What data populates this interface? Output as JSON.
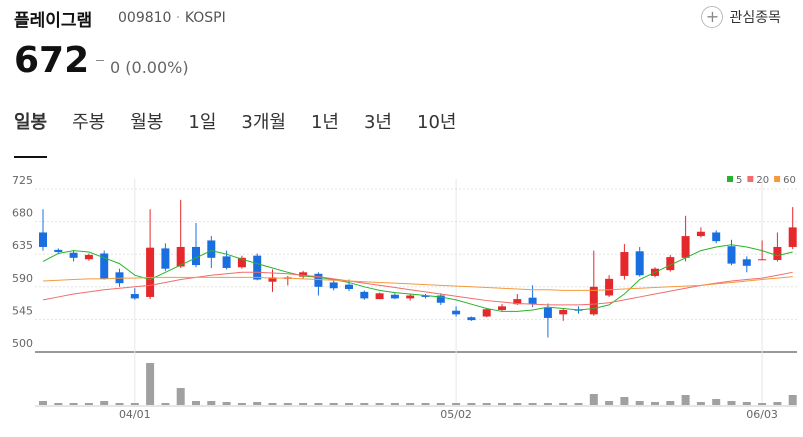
{
  "header": {
    "name": "플레이그램",
    "code": "009810",
    "separator": "·",
    "market": "KOSPI",
    "button": "관심종목"
  },
  "price": {
    "value": "672",
    "change": "0 (0.00%)"
  },
  "tabs": [
    "일봉",
    "주봉",
    "월봉",
    "1일",
    "3개월",
    "1년",
    "3년",
    "10년"
  ],
  "selected_tab": 0,
  "chart_data": {
    "type": "candlestick",
    "categories": [
      null,
      null,
      null,
      null,
      null,
      null,
      "04/01",
      null,
      null,
      null,
      null,
      null,
      null,
      null,
      null,
      null,
      null,
      null,
      null,
      null,
      null,
      null,
      null,
      null,
      null,
      null,
      null,
      "05/02",
      null,
      null,
      null,
      null,
      null,
      null,
      null,
      null,
      null,
      null,
      null,
      null,
      null,
      null,
      null,
      null,
      null,
      null,
      null,
      "06/03",
      null,
      null
    ],
    "open": [
      665,
      641,
      637,
      628,
      636,
      610,
      580,
      576,
      643,
      618,
      645,
      654,
      632,
      617,
      633,
      597,
      601,
      604,
      608,
      596,
      593,
      583,
      573,
      579,
      574,
      578,
      578,
      557,
      548,
      549,
      558,
      566,
      575,
      561,
      552,
      559,
      552,
      578,
      605,
      639,
      605,
      613,
      630,
      660,
      665,
      646,
      628,
      627,
      627,
      645
    ],
    "high": [
      697,
      643,
      640,
      636,
      640,
      615,
      588,
      697,
      650,
      710,
      678,
      660,
      640,
      633,
      636,
      614,
      605,
      612,
      610,
      600,
      600,
      585,
      582,
      581,
      580,
      580,
      581,
      563,
      549,
      560,
      566,
      580,
      592,
      567,
      560,
      563,
      640,
      606,
      649,
      645,
      617,
      634,
      688,
      672,
      668,
      655,
      632,
      654,
      665,
      700
    ],
    "low": [
      640,
      635,
      625,
      626,
      600,
      590,
      572,
      573,
      612,
      616,
      617,
      616,
      614,
      615,
      599,
      583,
      592,
      601,
      578,
      585,
      584,
      572,
      573,
      573,
      571,
      574,
      565,
      549,
      543,
      548,
      556,
      565,
      562,
      520,
      543,
      553,
      550,
      576,
      600,
      604,
      603,
      611,
      625,
      658,
      650,
      620,
      610,
      627,
      625,
      642
    ],
    "close": [
      645,
      638,
      630,
      634,
      601,
      595,
      574,
      644,
      615,
      645,
      620,
      630,
      616,
      630,
      600,
      603,
      603,
      610,
      590,
      588,
      587,
      574,
      581,
      574,
      578,
      576,
      568,
      552,
      544,
      559,
      563,
      573,
      566,
      547,
      558,
      557,
      590,
      601,
      638,
      606,
      615,
      631,
      660,
      666,
      653,
      622,
      619,
      628,
      645,
      672
    ],
    "up_color": "#e5282c",
    "down_color": "#1a6fe0",
    "volume": [
      4,
      2,
      2,
      2,
      4,
      2,
      2,
      42,
      2,
      17,
      4,
      4,
      3,
      2,
      3,
      2,
      2,
      2,
      2,
      2,
      2,
      2,
      2,
      2,
      2,
      2,
      2,
      2,
      2,
      2,
      2,
      2,
      2,
      2,
      2,
      2,
      11,
      4,
      8,
      4,
      3,
      4,
      10,
      3,
      6,
      4,
      3,
      2,
      3,
      10
    ],
    "volume_color": "#a0a0a0",
    "series": [
      {
        "name": "5",
        "color": "#27b42a",
        "values": [
          625,
          636,
          640,
          638,
          630,
          622,
          606,
          600,
          610,
          620,
          630,
          640,
          635,
          628,
          622,
          616,
          610,
          605,
          603,
          600,
          596,
          590,
          585,
          582,
          580,
          578,
          576,
          572,
          566,
          560,
          556,
          556,
          558,
          562,
          560,
          558,
          560,
          565,
          580,
          600,
          610,
          620,
          630,
          640,
          645,
          648,
          645,
          640,
          633,
          638
        ]
      },
      {
        "name": "20",
        "color": "#f26c6c",
        "values": [
          572,
          576,
          580,
          583,
          586,
          588,
          590,
          592,
          596,
          600,
          603,
          606,
          608,
          610,
          610,
          609,
          608,
          606,
          604,
          601,
          598,
          595,
          592,
          589,
          586,
          583,
          580,
          577,
          574,
          571,
          569,
          567,
          566,
          565,
          565,
          565,
          566,
          568,
          572,
          576,
          580,
          584,
          588,
          592,
          595,
          598,
          600,
          602,
          606,
          610
        ]
      },
      {
        "name": "60",
        "color": "#f59a3c",
        "values": [
          598,
          599,
          600,
          601,
          601,
          602,
          602,
          603,
          603,
          603,
          603,
          603,
          603,
          603,
          603,
          602,
          602,
          601,
          600,
          599,
          598,
          597,
          596,
          595,
          594,
          593,
          592,
          591,
          590,
          589,
          588,
          587,
          586,
          586,
          585,
          585,
          585,
          586,
          587,
          588,
          589,
          590,
          591,
          592,
          594,
          596,
          598,
          600,
          602,
          604
        ]
      }
    ],
    "ylim": [
      500,
      725
    ],
    "yticks": [
      500,
      545,
      590,
      635,
      680,
      725
    ],
    "grid": true
  }
}
